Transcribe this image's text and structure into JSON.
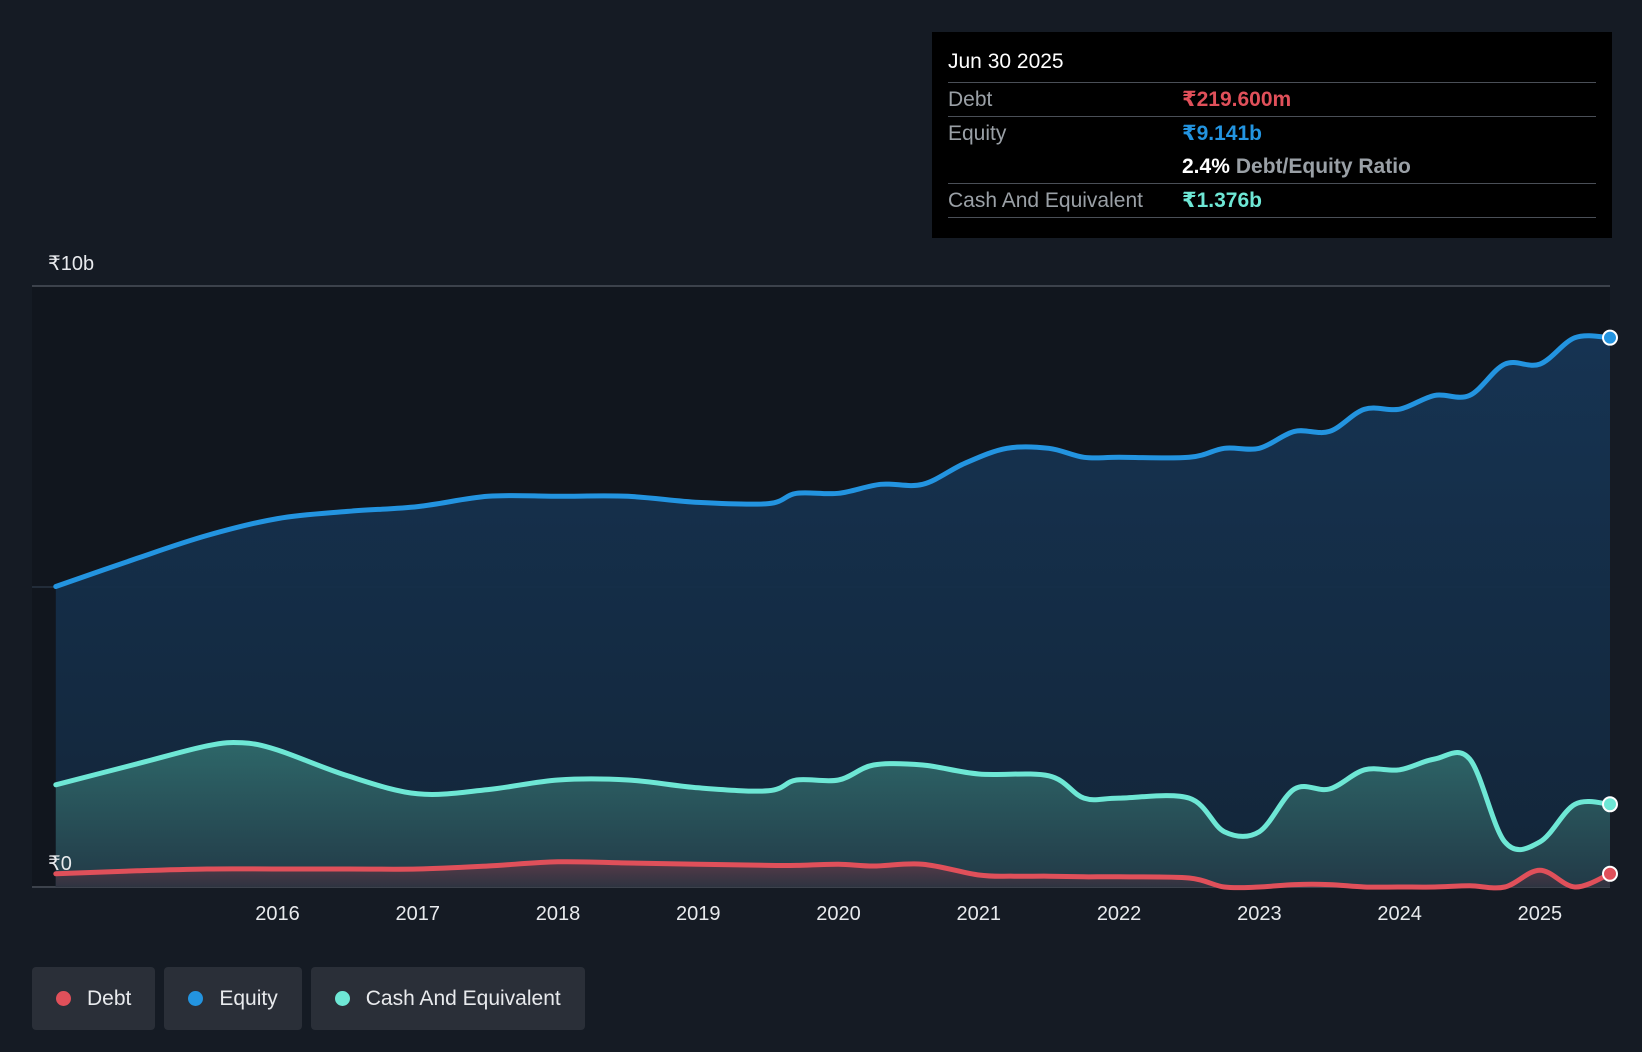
{
  "chart_data": {
    "type": "area",
    "y_unit_label_top": "₹10b",
    "y_unit_label_bottom": "₹0",
    "ylim": [
      0,
      10
    ],
    "xlim": [
      2014.25,
      2025.5
    ],
    "x_ticks": [
      "2016",
      "2017",
      "2018",
      "2019",
      "2020",
      "2021",
      "2022",
      "2023",
      "2024",
      "2025"
    ],
    "series": [
      {
        "name": "Equity",
        "color": "#2394e0",
        "points": [
          [
            2014.42,
            5.0
          ],
          [
            2015.0,
            5.47
          ],
          [
            2015.5,
            5.85
          ],
          [
            2016.0,
            6.13
          ],
          [
            2016.5,
            6.25
          ],
          [
            2017.0,
            6.33
          ],
          [
            2017.5,
            6.5
          ],
          [
            2018.0,
            6.5
          ],
          [
            2018.5,
            6.5
          ],
          [
            2019.0,
            6.4
          ],
          [
            2019.5,
            6.38
          ],
          [
            2019.7,
            6.55
          ],
          [
            2020.0,
            6.55
          ],
          [
            2020.3,
            6.7
          ],
          [
            2020.6,
            6.7
          ],
          [
            2020.9,
            7.05
          ],
          [
            2021.2,
            7.3
          ],
          [
            2021.5,
            7.3
          ],
          [
            2021.75,
            7.15
          ],
          [
            2022.0,
            7.15
          ],
          [
            2022.5,
            7.15
          ],
          [
            2022.75,
            7.3
          ],
          [
            2023.0,
            7.3
          ],
          [
            2023.25,
            7.58
          ],
          [
            2023.5,
            7.58
          ],
          [
            2023.75,
            7.95
          ],
          [
            2024.0,
            7.95
          ],
          [
            2024.25,
            8.18
          ],
          [
            2024.5,
            8.18
          ],
          [
            2024.75,
            8.7
          ],
          [
            2025.0,
            8.7
          ],
          [
            2025.25,
            9.14
          ],
          [
            2025.5,
            9.14
          ]
        ]
      },
      {
        "name": "Cash And Equivalent",
        "color": "#6ee7d5",
        "points": [
          [
            2014.42,
            1.7
          ],
          [
            2015.0,
            2.05
          ],
          [
            2015.5,
            2.35
          ],
          [
            2015.75,
            2.4
          ],
          [
            2016.0,
            2.28
          ],
          [
            2016.5,
            1.85
          ],
          [
            2017.0,
            1.55
          ],
          [
            2017.5,
            1.62
          ],
          [
            2018.0,
            1.78
          ],
          [
            2018.5,
            1.78
          ],
          [
            2019.0,
            1.65
          ],
          [
            2019.5,
            1.6
          ],
          [
            2019.7,
            1.78
          ],
          [
            2020.0,
            1.78
          ],
          [
            2020.25,
            2.03
          ],
          [
            2020.6,
            2.03
          ],
          [
            2021.0,
            1.88
          ],
          [
            2021.5,
            1.85
          ],
          [
            2021.75,
            1.48
          ],
          [
            2022.0,
            1.48
          ],
          [
            2022.5,
            1.48
          ],
          [
            2022.75,
            0.92
          ],
          [
            2023.0,
            0.92
          ],
          [
            2023.25,
            1.63
          ],
          [
            2023.5,
            1.63
          ],
          [
            2023.75,
            1.95
          ],
          [
            2024.0,
            1.95
          ],
          [
            2024.25,
            2.13
          ],
          [
            2024.5,
            2.13
          ],
          [
            2024.75,
            0.75
          ],
          [
            2025.0,
            0.75
          ],
          [
            2025.25,
            1.376
          ],
          [
            2025.5,
            1.376
          ]
        ]
      },
      {
        "name": "Debt",
        "color": "#e0505a",
        "points": [
          [
            2014.42,
            0.22
          ],
          [
            2015.0,
            0.27
          ],
          [
            2015.5,
            0.3
          ],
          [
            2016.0,
            0.3
          ],
          [
            2016.5,
            0.3
          ],
          [
            2017.0,
            0.3
          ],
          [
            2017.5,
            0.35
          ],
          [
            2018.0,
            0.42
          ],
          [
            2018.5,
            0.4
          ],
          [
            2019.0,
            0.38
          ],
          [
            2019.5,
            0.36
          ],
          [
            2019.7,
            0.36
          ],
          [
            2020.0,
            0.38
          ],
          [
            2020.25,
            0.35
          ],
          [
            2020.6,
            0.38
          ],
          [
            2021.0,
            0.2
          ],
          [
            2021.25,
            0.18
          ],
          [
            2021.5,
            0.18
          ],
          [
            2021.75,
            0.17
          ],
          [
            2022.0,
            0.17
          ],
          [
            2022.5,
            0.15
          ],
          [
            2022.75,
            0.0
          ],
          [
            2023.0,
            0.0
          ],
          [
            2023.25,
            0.04
          ],
          [
            2023.5,
            0.04
          ],
          [
            2023.75,
            0.0
          ],
          [
            2024.0,
            0.0
          ],
          [
            2024.25,
            0.0
          ],
          [
            2024.5,
            0.02
          ],
          [
            2024.75,
            0.0
          ],
          [
            2025.0,
            0.28
          ],
          [
            2025.25,
            0.0
          ],
          [
            2025.5,
            0.2196
          ]
        ]
      }
    ]
  },
  "tooltip": {
    "date": "Jun 30 2025",
    "debt_label": "Debt",
    "debt_value": "₹219.600m",
    "equity_label": "Equity",
    "equity_value": "₹9.141b",
    "ratio_value": "2.4%",
    "ratio_label": "Debt/Equity Ratio",
    "cash_label": "Cash And Equivalent",
    "cash_value": "₹1.376b"
  },
  "legend": [
    {
      "label": "Debt",
      "color": "#e0505a"
    },
    {
      "label": "Equity",
      "color": "#2394e0"
    },
    {
      "label": "Cash And Equivalent",
      "color": "#6ee7d5"
    }
  ],
  "colors": {
    "background": "#151b24",
    "plot_background": "#11161e",
    "debt": "#e0505a",
    "equity": "#2394e0",
    "cash": "#6ee7d5"
  }
}
